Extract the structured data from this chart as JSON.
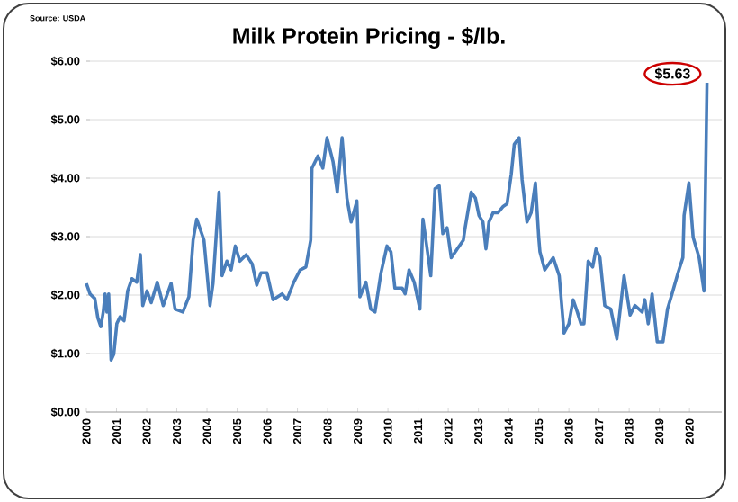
{
  "chart_data": {
    "type": "line",
    "title": "Milk Protein Pricing - $/lb.",
    "annotations": [
      "Source: USDA",
      {
        "text": "$5.63",
        "x": 2020.58,
        "y": 5.63
      }
    ],
    "x": [
      2000.0,
      2000.12,
      2000.28,
      2000.38,
      2000.48,
      2000.56,
      2000.62,
      2000.68,
      2000.74,
      2000.82,
      2000.91,
      2001.01,
      2001.12,
      2001.25,
      2001.37,
      2001.51,
      2001.67,
      2001.79,
      2001.87,
      2002.01,
      2002.15,
      2002.35,
      2002.55,
      2002.81,
      2002.94,
      2003.2,
      2003.4,
      2003.54,
      2003.66,
      2003.9,
      2004.1,
      2004.2,
      2004.4,
      2004.5,
      2004.66,
      2004.8,
      2004.94,
      2005.09,
      2005.3,
      2005.5,
      2005.65,
      2005.79,
      2005.99,
      2006.19,
      2006.49,
      2006.65,
      2006.88,
      2007.09,
      2007.28,
      2007.44,
      2007.48,
      2007.68,
      2007.84,
      2007.98,
      2008.18,
      2008.32,
      2008.48,
      2008.64,
      2008.78,
      2008.97,
      2009.07,
      2009.27,
      2009.43,
      2009.57,
      2009.77,
      2009.97,
      2010.1,
      2010.23,
      2010.47,
      2010.57,
      2010.7,
      2010.87,
      2011.06,
      2011.16,
      2011.26,
      2011.42,
      2011.56,
      2011.7,
      2011.82,
      2011.96,
      2012.1,
      2012.3,
      2012.5,
      2012.56,
      2012.76,
      2012.9,
      2013.02,
      2013.15,
      2013.25,
      2013.35,
      2013.49,
      2013.65,
      2013.81,
      2013.95,
      2014.09,
      2014.19,
      2014.35,
      2014.45,
      2014.61,
      2014.75,
      2014.89,
      2015.0,
      2015.04,
      2015.2,
      2015.48,
      2015.68,
      2015.84,
      2016.0,
      2016.14,
      2016.28,
      2016.4,
      2016.5,
      2016.64,
      2016.79,
      2016.9,
      2017.03,
      2017.19,
      2017.39,
      2017.59,
      2017.83,
      2018.03,
      2018.19,
      2018.43,
      2018.52,
      2018.63,
      2018.76,
      2018.93,
      2019.12,
      2019.27,
      2019.42,
      2019.62,
      2019.78,
      2019.82,
      2019.98,
      2020.12,
      2020.32,
      2020.48,
      2020.58
    ],
    "series": [
      {
        "color": "#4a7ebb",
        "values": [
          2.2,
          2.02,
          1.94,
          1.61,
          1.46,
          1.71,
          2.02,
          1.71,
          2.02,
          0.89,
          0.99,
          1.51,
          1.63,
          1.56,
          2.07,
          2.28,
          2.22,
          2.69,
          1.82,
          2.07,
          1.87,
          2.22,
          1.82,
          2.2,
          1.76,
          1.71,
          1.97,
          2.94,
          3.3,
          2.94,
          1.82,
          2.2,
          3.76,
          2.33,
          2.58,
          2.43,
          2.84,
          2.58,
          2.69,
          2.53,
          2.17,
          2.38,
          2.38,
          1.92,
          2.02,
          1.92,
          2.22,
          2.43,
          2.48,
          2.94,
          4.17,
          4.38,
          4.17,
          4.69,
          4.28,
          3.76,
          4.69,
          3.66,
          3.25,
          3.61,
          1.97,
          2.22,
          1.76,
          1.71,
          2.38,
          2.84,
          2.74,
          2.12,
          2.12,
          2.02,
          2.43,
          2.22,
          1.76,
          3.3,
          2.94,
          2.33,
          3.82,
          3.87,
          3.05,
          3.15,
          2.64,
          2.79,
          2.94,
          3.15,
          3.76,
          3.66,
          3.36,
          3.25,
          2.79,
          3.25,
          3.41,
          3.41,
          3.51,
          3.56,
          4.07,
          4.58,
          4.69,
          3.97,
          3.25,
          3.41,
          3.92,
          2.99,
          2.74,
          2.43,
          2.64,
          2.33,
          1.35,
          1.51,
          1.92,
          1.71,
          1.51,
          1.51,
          2.58,
          2.48,
          2.79,
          2.64,
          1.82,
          1.76,
          1.25,
          2.33,
          1.66,
          1.82,
          1.71,
          1.92,
          1.51,
          2.02,
          1.2,
          1.2,
          1.76,
          2.02,
          2.38,
          2.64,
          3.36,
          3.92,
          2.99,
          2.64,
          2.07,
          5.63
        ]
      }
    ],
    "xlim": [
      2000,
      2021.07
    ],
    "xticks": [
      2000,
      2001,
      2002,
      2003,
      2004,
      2005,
      2006,
      2007,
      2008,
      2009,
      2010,
      2011,
      2012,
      2013,
      2014,
      2015,
      2016,
      2017,
      2018,
      2019,
      2020
    ],
    "ylim": [
      0,
      6
    ],
    "yticks": [
      {
        "value": 0,
        "label": "$0.00"
      },
      {
        "value": 1,
        "label": "$1.00"
      },
      {
        "value": 2,
        "label": "$2.00"
      },
      {
        "value": 3,
        "label": "$3.00"
      },
      {
        "value": 4,
        "label": "$4.00"
      },
      {
        "value": 5,
        "label": "$5.00"
      },
      {
        "value": 6,
        "label": "$6.00"
      }
    ],
    "grid": "y",
    "marker": "none",
    "line_style": "solid"
  }
}
